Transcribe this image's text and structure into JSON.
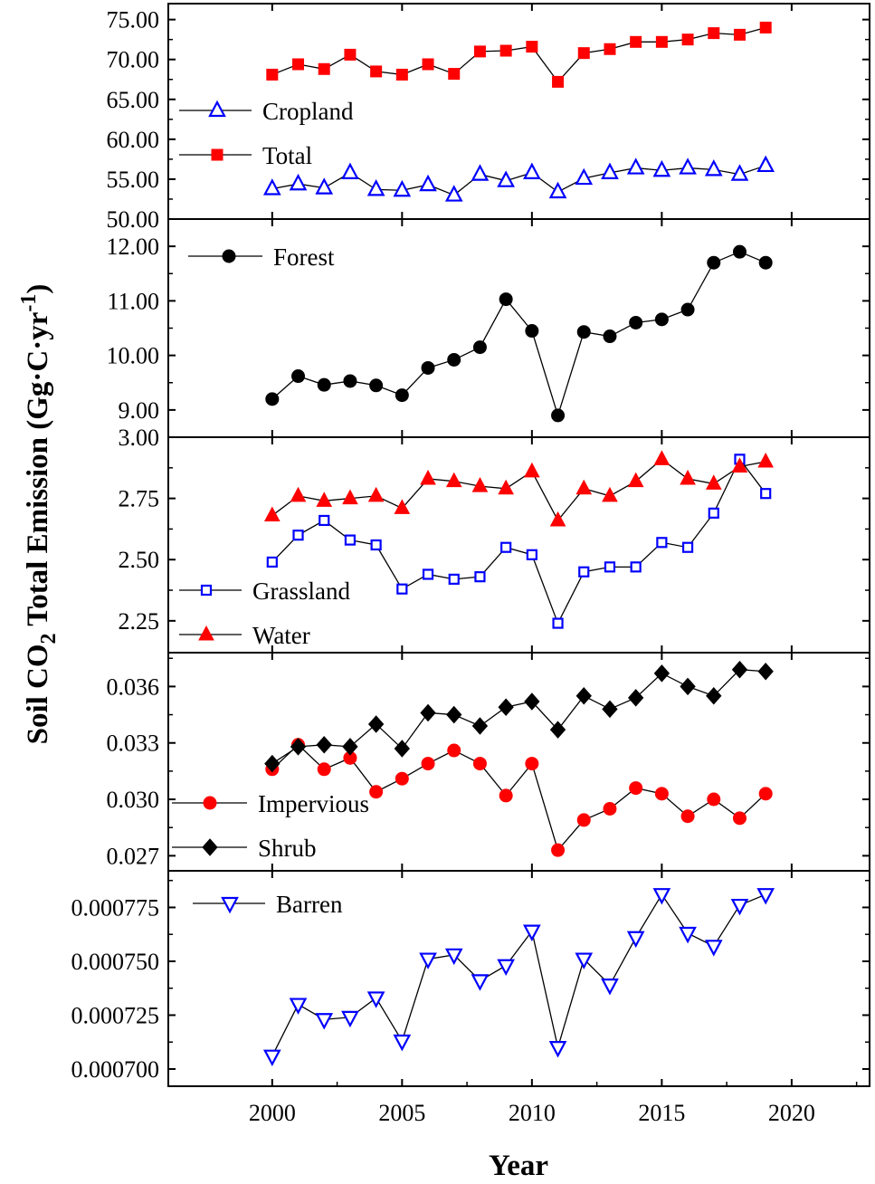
{
  "chart_data": {
    "type": "line",
    "title": "",
    "ylabel": {
      "prefix": "Soil CO",
      "sub": "2",
      "middle": " Total Emission (Gg·C·yr",
      "sup": "-1",
      "suffix": ")"
    },
    "xlabel": "Year",
    "x_ticks": [
      "2000",
      "2005",
      "2010",
      "2015",
      "2020"
    ],
    "xlim": [
      1996,
      2023
    ],
    "x": [
      2000,
      2001,
      2002,
      2003,
      2004,
      2005,
      2006,
      2007,
      2008,
      2009,
      2010,
      2011,
      2012,
      2013,
      2014,
      2015,
      2016,
      2017,
      2018,
      2019
    ],
    "panels": [
      {
        "name": "cropland-total",
        "ylim": [
          50,
          77
        ],
        "y_ticks": [
          50,
          55,
          60,
          65,
          70,
          75
        ],
        "y_tick_labels": [
          "50.00",
          "55.00",
          "60.00",
          "65.00",
          "70.00",
          "75.00"
        ],
        "series": [
          {
            "name": "Cropland",
            "marker": "triangle-up-open",
            "color": "#0000ff",
            "values": [
              53.8,
              54.4,
              53.9,
              55.8,
              53.7,
              53.6,
              54.3,
              53.0,
              55.6,
              54.8,
              55.8,
              53.4,
              55.1,
              55.8,
              56.4,
              56.1,
              56.4,
              56.2,
              55.6,
              56.7
            ]
          },
          {
            "name": "Total",
            "marker": "square-filled",
            "color": "#ff0000",
            "values": [
              68.1,
              69.4,
              68.8,
              70.6,
              68.5,
              68.1,
              69.4,
              68.2,
              71.0,
              71.1,
              71.6,
              67.2,
              70.8,
              71.3,
              72.2,
              72.2,
              72.5,
              73.3,
              73.1,
              74.0
            ]
          }
        ]
      },
      {
        "name": "forest",
        "ylim": [
          8.5,
          12.5
        ],
        "y_ticks": [
          9,
          10,
          11,
          12
        ],
        "y_tick_labels": [
          "9.00",
          "10.00",
          "11.00",
          "12.00"
        ],
        "series": [
          {
            "name": "Forest",
            "marker": "circle-filled",
            "color": "#000000",
            "values": [
              9.2,
              9.62,
              9.46,
              9.53,
              9.45,
              9.27,
              9.77,
              9.92,
              10.15,
              11.03,
              10.45,
              8.9,
              10.43,
              10.35,
              10.6,
              10.66,
              10.84,
              11.7,
              11.9,
              11.7
            ]
          }
        ]
      },
      {
        "name": "grassland-water",
        "ylim": [
          2.12,
          3.0
        ],
        "y_ticks": [
          2.25,
          2.5,
          2.75,
          3.0
        ],
        "y_tick_labels": [
          "2.25",
          "2.50",
          "2.75",
          "3.00"
        ],
        "series": [
          {
            "name": "Grassland",
            "marker": "square-open",
            "color": "#0000ff",
            "values": [
              2.49,
              2.6,
              2.66,
              2.58,
              2.56,
              2.38,
              2.44,
              2.42,
              2.43,
              2.55,
              2.52,
              2.24,
              2.45,
              2.47,
              2.47,
              2.57,
              2.55,
              2.69,
              2.91,
              2.77
            ]
          },
          {
            "name": "Water",
            "marker": "triangle-up-filled",
            "color": "#ff0000",
            "values": [
              2.68,
              2.76,
              2.74,
              2.75,
              2.76,
              2.71,
              2.83,
              2.82,
              2.8,
              2.79,
              2.86,
              2.66,
              2.79,
              2.76,
              2.82,
              2.91,
              2.83,
              2.81,
              2.88,
              2.9
            ]
          }
        ]
      },
      {
        "name": "impervious-shrub",
        "ylim": [
          0.0262,
          0.0378
        ],
        "y_ticks": [
          0.027,
          0.03,
          0.033,
          0.036
        ],
        "y_tick_labels": [
          "0.027",
          "0.030",
          "0.033",
          "0.036"
        ],
        "series": [
          {
            "name": "Impervious",
            "marker": "circle-filled",
            "color": "#ff0000",
            "values": [
              0.0316,
              0.0329,
              0.0316,
              0.0322,
              0.0304,
              0.0311,
              0.0319,
              0.0326,
              0.0319,
              0.0302,
              0.0319,
              0.0273,
              0.0289,
              0.0295,
              0.0306,
              0.0303,
              0.0291,
              0.03,
              0.029,
              0.0303
            ]
          },
          {
            "name": "Shrub",
            "marker": "diamond-filled",
            "color": "#000000",
            "values": [
              0.0319,
              0.0328,
              0.0329,
              0.0328,
              0.034,
              0.0327,
              0.0346,
              0.0345,
              0.0339,
              0.0349,
              0.0352,
              0.0337,
              0.0355,
              0.0348,
              0.0354,
              0.0367,
              0.036,
              0.0355,
              0.0369,
              0.0368
            ]
          }
        ]
      },
      {
        "name": "barren",
        "ylim": [
          0.000692,
          0.000792
        ],
        "y_ticks": [
          0.0007,
          0.000725,
          0.00075,
          0.000775
        ],
        "y_tick_labels": [
          "0.000700",
          "0.000725",
          "0.000750",
          "0.000775"
        ],
        "series": [
          {
            "name": "Barren",
            "marker": "triangle-down-open",
            "color": "#0000ff",
            "values": [
              0.000706,
              0.00073,
              0.000723,
              0.000724,
              0.000733,
              0.000713,
              0.000751,
              0.000753,
              0.000741,
              0.000748,
              0.000764,
              0.00071,
              0.000751,
              0.000739,
              0.000761,
              0.000781,
              0.000763,
              0.000757,
              0.000776,
              0.000781
            ]
          }
        ]
      }
    ],
    "legend_placement": [
      "left",
      "top-left",
      "bottom-left",
      "bottom-left",
      "top-left"
    ]
  }
}
